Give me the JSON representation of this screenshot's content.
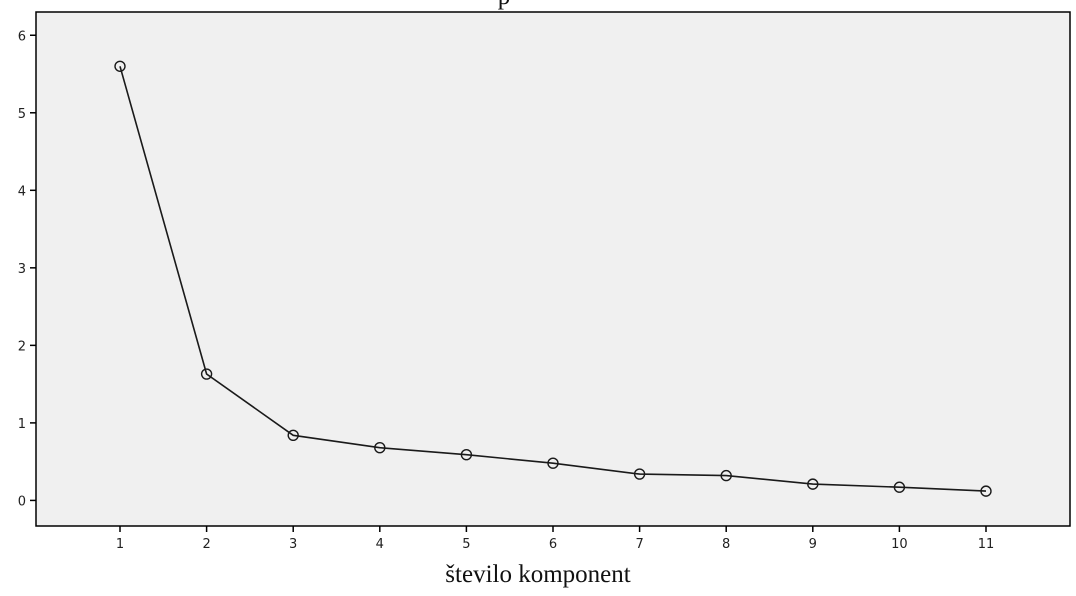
{
  "chart_data": {
    "type": "line",
    "title_fragment": "p",
    "xlabel": "število komponent",
    "ylabel": "",
    "x": [
      1,
      2,
      3,
      4,
      5,
      6,
      7,
      8,
      9,
      10,
      11
    ],
    "series": [
      {
        "values": [
          5.6,
          1.63,
          0.84,
          0.68,
          0.59,
          0.48,
          0.34,
          0.32,
          0.21,
          0.17,
          0.12
        ]
      }
    ],
    "xticks": [
      "1",
      "2",
      "3",
      "4",
      "5",
      "6",
      "7",
      "8",
      "9",
      "10",
      "11"
    ],
    "yticks": [
      "0",
      "1",
      "2",
      "3",
      "4",
      "5",
      "6"
    ],
    "ylim": [
      -0.33,
      6.3
    ],
    "xlim": [
      0.03,
      11.97
    ],
    "grid": false,
    "legend": "none",
    "colors": {
      "plot_background": "#f0f0f0",
      "line": "#1a1a1a",
      "marker": "#1a1a1a",
      "axis": "#000000"
    },
    "marker": "open-circle"
  }
}
